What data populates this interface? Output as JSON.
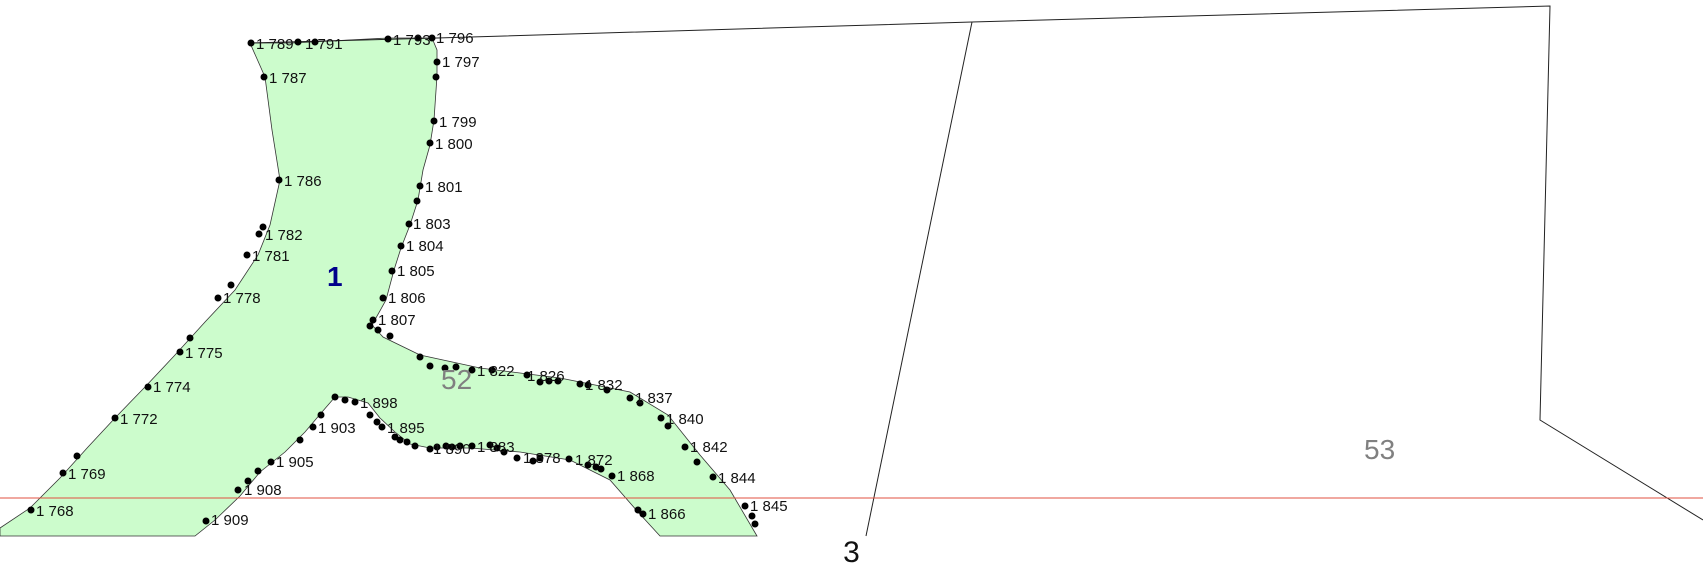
{
  "colors": {
    "parcel_fill": "#ccfccc",
    "parcel_outline": "#222222",
    "highlight_label": "#00008b",
    "parcel_label": "#808080",
    "ruler_line": "#e05040",
    "points": "#000000"
  },
  "map": {
    "highlighted_parcel_label": "1",
    "parcel_labels": [
      "52",
      "53"
    ],
    "point_labels": [
      "1 789",
      "1 791",
      "1 793",
      "1 796",
      "1 787",
      "1 797",
      "1 786",
      "1 799",
      "1 800",
      "1 801",
      "1 782",
      "1 781",
      "1 803",
      "1 804",
      "1 805",
      "1 778",
      "1 806",
      "1 807",
      "1 775",
      "1 774",
      "1 772",
      "1 769",
      "1 768",
      "1 822",
      "1 826",
      "1 832",
      "1 837",
      "1 840",
      "1 842",
      "1 844",
      "1 845",
      "1 898",
      "1 895",
      "1 903",
      "1 890",
      "1 883",
      "1 878",
      "1 872",
      "1 868",
      "1 866",
      "1 905",
      "1 908",
      "1 909"
    ]
  },
  "page_number": "3"
}
